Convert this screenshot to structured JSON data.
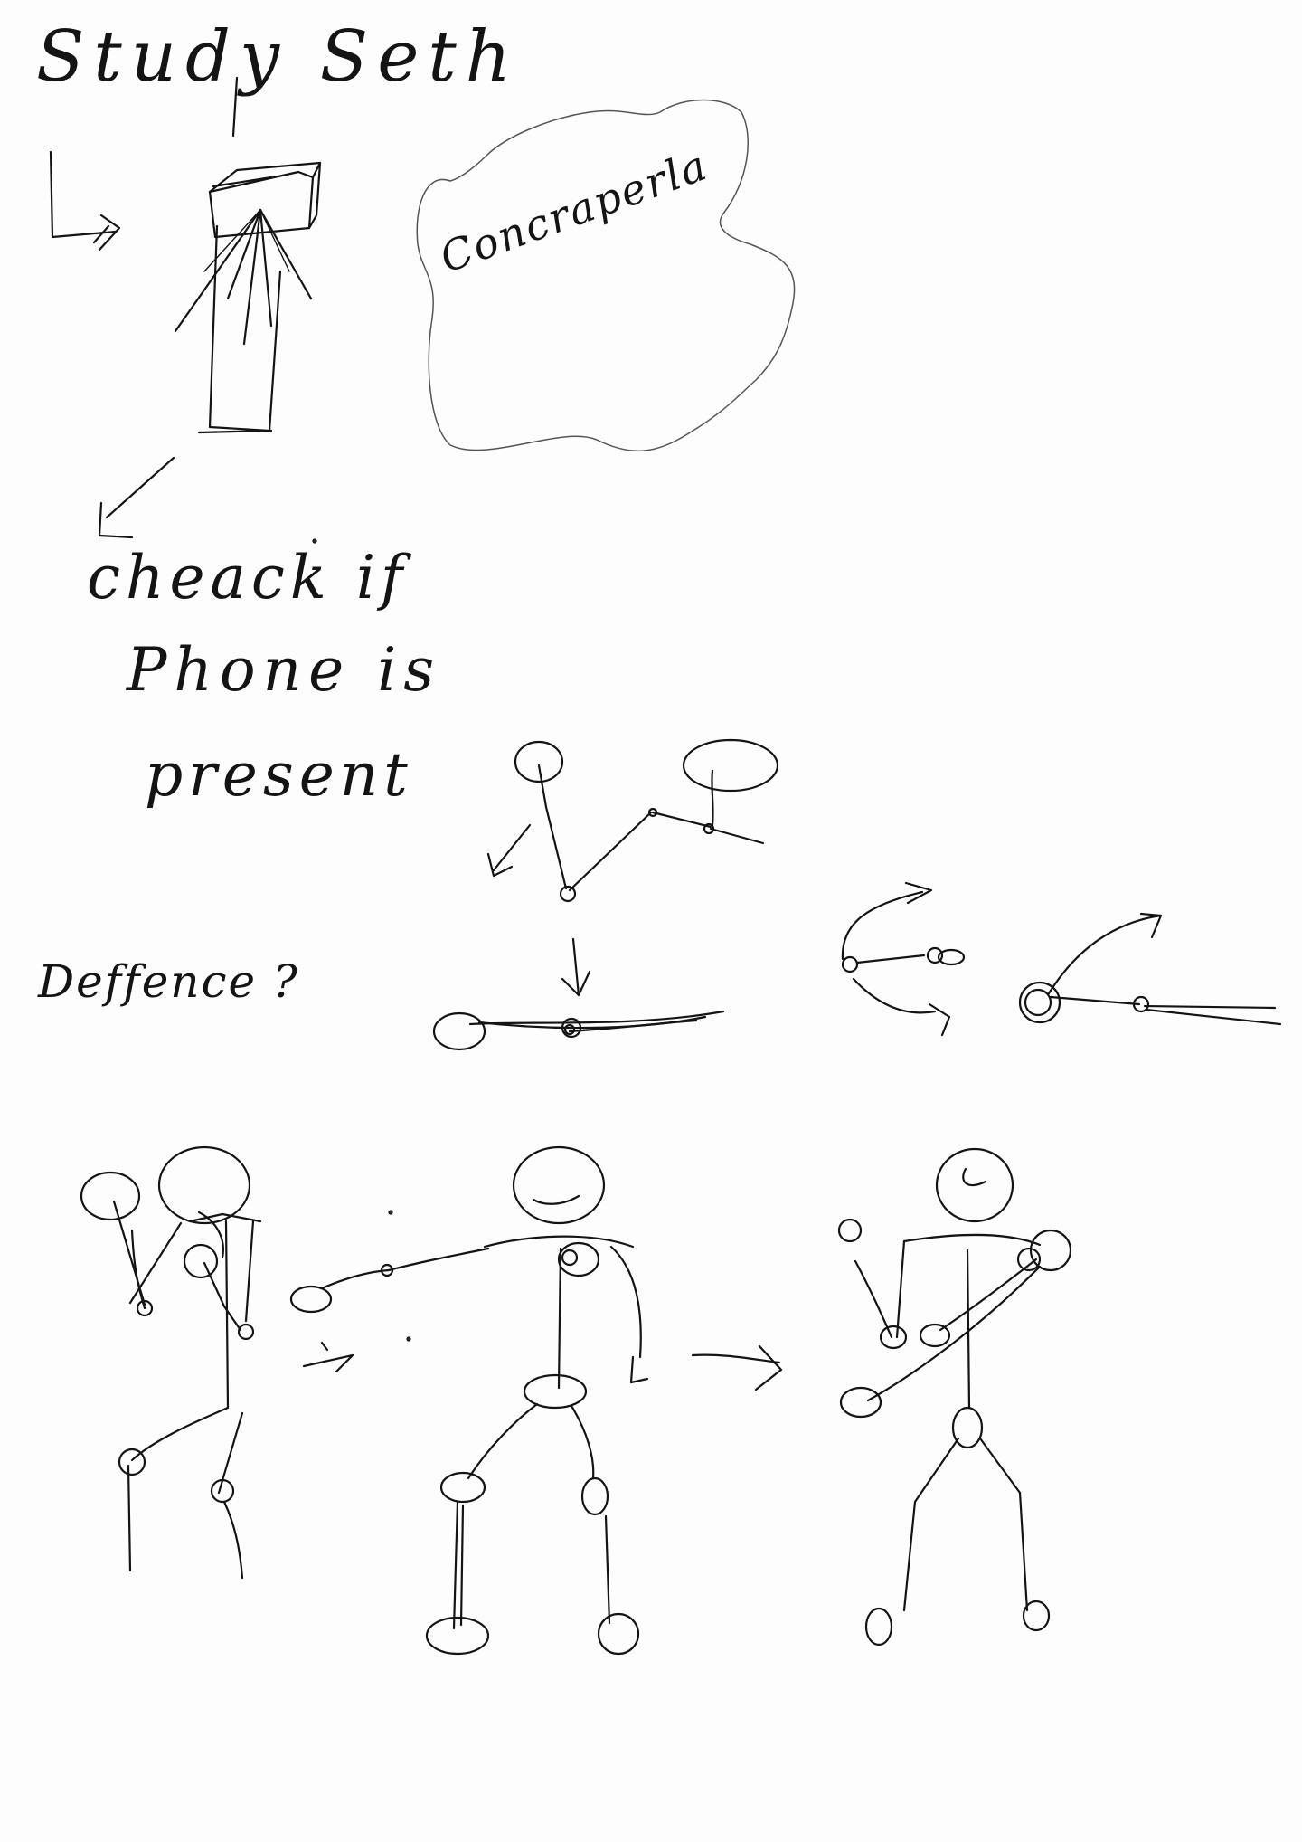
{
  "notes": {
    "title": "Study Seth",
    "cloud_label": "Concraperla",
    "check_line1": "cheack if",
    "check_line2": "Phone is",
    "check_line3": "present",
    "defence_label": "Deffence ?"
  },
  "colors": {
    "paper": "#fdfdfd",
    "ink": "#141414"
  }
}
